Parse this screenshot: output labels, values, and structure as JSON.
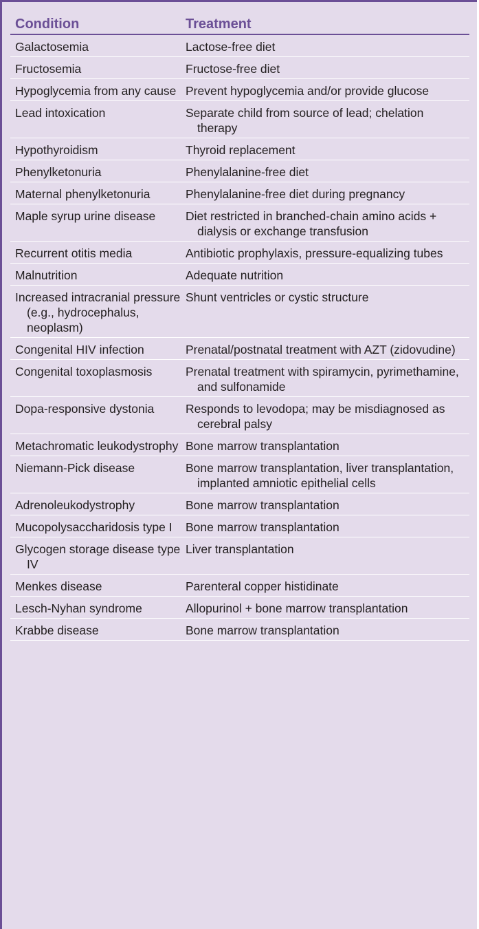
{
  "table": {
    "headers": {
      "condition": "Condition",
      "treatment": "Treatment"
    },
    "rows": [
      {
        "condition": "Galactosemia",
        "treatment": "Lactose-free diet"
      },
      {
        "condition": "Fructosemia",
        "treatment": "Fructose-free diet"
      },
      {
        "condition": "Hypoglycemia from any cause",
        "treatment": "Prevent hypoglycemia and/or provide glucose"
      },
      {
        "condition": "Lead intoxication",
        "treatment": "Separate child from source of lead; chelation therapy"
      },
      {
        "condition": "Hypothyroidism",
        "treatment": "Thyroid replacement"
      },
      {
        "condition": "Phenylketonuria",
        "treatment": "Phenylalanine-free diet"
      },
      {
        "condition": "Maternal phenylketonuria",
        "treatment": "Phenylalanine-free diet during pregnancy"
      },
      {
        "condition": "Maple syrup urine disease",
        "treatment": "Diet restricted in branched-chain amino acids + dialysis or exchange transfusion"
      },
      {
        "condition": "Recurrent otitis media",
        "treatment": "Antibiotic prophylaxis, pressure-equalizing tubes"
      },
      {
        "condition": "Malnutrition",
        "treatment": "Adequate nutrition"
      },
      {
        "condition": "Increased intracranial pressure (e.g., hydrocephalus, neoplasm)",
        "treatment": "Shunt ventricles or cystic structure"
      },
      {
        "condition": "Congenital HIV infection",
        "treatment": "Prenatal/postnatal treatment with AZT (zidovudine)"
      },
      {
        "condition": "Congenital toxoplasmosis",
        "treatment": "Prenatal treatment with spiramycin, pyrimethamine, and sulfonamide"
      },
      {
        "condition": "Dopa-responsive dystonia",
        "treatment": "Responds to levodopa; may be misdiagnosed as cerebral palsy"
      },
      {
        "condition": "Metachromatic leukodystrophy",
        "treatment": "Bone marrow transplantation"
      },
      {
        "condition": "Niemann-Pick disease",
        "treatment": "Bone marrow transplantation, liver transplantation, implanted amniotic epithelial cells"
      },
      {
        "condition": "Adrenoleukodystrophy",
        "treatment": "Bone marrow transplantation"
      },
      {
        "condition": "Mucopolysaccharidosis type I",
        "treatment": "Bone marrow transplantation"
      },
      {
        "condition": "Glycogen storage disease type IV",
        "treatment": "Liver transplantation"
      },
      {
        "condition": "Menkes disease",
        "treatment": "Parenteral copper histidinate"
      },
      {
        "condition": "Lesch-Nyhan syndrome",
        "treatment": "Allopurinol + bone marrow transplantation"
      },
      {
        "condition": "Krabbe disease",
        "treatment": "Bone marrow transplantation"
      }
    ]
  }
}
